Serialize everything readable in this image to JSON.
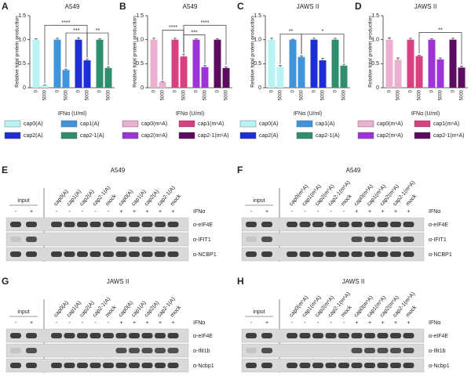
{
  "chart_data": [
    {
      "type": "bar",
      "letter": "A",
      "title": "A549",
      "y_label": "Relative total protein production",
      "x_label": "IFNα (U/ml)",
      "categories": [
        "0",
        "5000"
      ],
      "ylim": [
        0,
        1.5
      ],
      "yticks": [
        0,
        0.5,
        {
          "value": 1,
          "label": "1.0"
        },
        1.5
      ],
      "series": [
        {
          "name": "cap0(A)",
          "color": "#b9f3f3",
          "values": [
            1.0,
            0.05
          ],
          "errors": [
            0.02,
            0.01
          ]
        },
        {
          "name": "cap1(A)",
          "color": "#3f94dc",
          "values": [
            1.0,
            0.37
          ],
          "errors": [
            0.03,
            0.02
          ]
        },
        {
          "name": "cap2(A)",
          "color": "#1d2fd2",
          "values": [
            1.0,
            0.57
          ],
          "errors": [
            0.04,
            0.03
          ]
        },
        {
          "name": "cap2-1(A)",
          "color": "#2f8f6c",
          "values": [
            1.0,
            0.41
          ],
          "errors": [
            0.02,
            0.02
          ]
        }
      ],
      "annotations": [
        "****",
        "***",
        "**"
      ]
    },
    {
      "type": "bar",
      "letter": "B",
      "title": "A549",
      "y_label": "Relative total protein production",
      "x_label": "IFNα (U/ml)",
      "categories": [
        "0",
        "5000"
      ],
      "ylim": [
        0,
        1.5
      ],
      "yticks": [
        0,
        0.5,
        {
          "value": 1,
          "label": "1.0"
        },
        1.5
      ],
      "series": [
        {
          "name": "cap0(m⁶A)",
          "color": "#ebb0cf",
          "values": [
            1.0,
            0.12
          ],
          "errors": [
            0.03,
            0.01
          ]
        },
        {
          "name": "cap1(m⁶A)",
          "color": "#d8407f",
          "values": [
            1.0,
            0.65
          ],
          "errors": [
            0.03,
            0.05
          ]
        },
        {
          "name": "cap2(m⁶A)",
          "color": "#9d34d6",
          "values": [
            1.0,
            0.43
          ],
          "errors": [
            0.02,
            0.03
          ]
        },
        {
          "name": "cap2-1(m⁶A)",
          "color": "#5c0c5e",
          "values": [
            1.0,
            0.41
          ],
          "errors": [
            0.02,
            0.02
          ]
        }
      ],
      "annotations": [
        "****",
        "***",
        "****"
      ]
    },
    {
      "type": "bar",
      "letter": "C",
      "title": "JAWS II",
      "y_label": "Relative total protein production",
      "x_label": "IFNα (U/ml)",
      "categories": [
        "0",
        "5000"
      ],
      "ylim": [
        0,
        1.5
      ],
      "yticks": [
        0,
        0.5,
        {
          "value": 1,
          "label": "1.0"
        },
        1.5
      ],
      "series": [
        {
          "name": "cap0(A)",
          "color": "#b9f3f3",
          "values": [
            1.0,
            0.43
          ],
          "errors": [
            0.03,
            0.03
          ]
        },
        {
          "name": "cap1(A)",
          "color": "#3f94dc",
          "values": [
            1.0,
            0.64
          ],
          "errors": [
            0.01,
            0.02
          ]
        },
        {
          "name": "cap2(A)",
          "color": "#1d2fd2",
          "values": [
            1.0,
            0.57
          ],
          "errors": [
            0.03,
            0.04
          ]
        },
        {
          "name": "cap2-1(A)",
          "color": "#2f8f6c",
          "values": [
            1.0,
            0.46
          ],
          "errors": [
            0.03,
            0.03
          ]
        }
      ],
      "annotations": [
        "**",
        "*"
      ]
    },
    {
      "type": "bar",
      "letter": "D",
      "title": "JAWS II",
      "y_label": "Relative total protein production",
      "x_label": "IFNα (U/ml)",
      "categories": [
        "0",
        "5000"
      ],
      "ylim": [
        0,
        1.5
      ],
      "yticks": [
        0,
        0.5,
        {
          "value": 1,
          "label": "1.0"
        },
        1.5
      ],
      "series": [
        {
          "name": "cap0(m⁶A)",
          "color": "#ebb0cf",
          "values": [
            1.0,
            0.58
          ],
          "errors": [
            0.04,
            0.04
          ]
        },
        {
          "name": "cap1(m⁶A)",
          "color": "#d8407f",
          "values": [
            1.0,
            0.66
          ],
          "errors": [
            0.03,
            0.02
          ]
        },
        {
          "name": "cap2(m⁶A)",
          "color": "#9d34d6",
          "values": [
            1.0,
            0.59
          ],
          "errors": [
            0.02,
            0.03
          ]
        },
        {
          "name": "cap2-1(m⁶A)",
          "color": "#5c0c5e",
          "values": [
            1.0,
            0.42
          ],
          "errors": [
            0.03,
            0.03
          ]
        }
      ],
      "annotations": [
        "**"
      ]
    }
  ],
  "blots": [
    {
      "letter": "E",
      "title": "A549",
      "input": "input",
      "lanes": [
        "cap0(A)",
        "cap1(A)",
        "cap2(A)",
        "cap2-1(A)",
        "mock",
        "cap0(A)",
        "cap1(A)",
        "cap2(A)",
        "cap2-1(A)",
        "mock"
      ],
      "treatment": "IFNα",
      "input_signs": [
        "-",
        "+"
      ],
      "signs": [
        "-",
        "-",
        "-",
        "-",
        "-",
        "+",
        "+",
        "+",
        "+",
        "+"
      ],
      "antibodies": [
        "α-eIF4E",
        "α-IFIT1",
        "α-NCBP1"
      ]
    },
    {
      "letter": "F",
      "title": "A549",
      "input": "input",
      "lanes": [
        "cap0(m⁶A)",
        "cap1(m⁶A)",
        "cap2(m⁶A)",
        "cap2-1(m⁶A)",
        "mock",
        "cap0(m⁶A)",
        "cap1(m⁶A)",
        "cap2(m⁶A)",
        "cap2-1(m⁶A)",
        "mock"
      ],
      "treatment": "IFNα",
      "input_signs": [
        "-",
        "+"
      ],
      "signs": [
        "-",
        "-",
        "-",
        "-",
        "-",
        "+",
        "+",
        "+",
        "+",
        "+"
      ],
      "antibodies": [
        "α-eIF4E",
        "α-IFIT1",
        "α-NCBP1"
      ]
    },
    {
      "letter": "G",
      "title": "JAWS II",
      "input": "input",
      "lanes": [
        "cap0(A)",
        "cap1(A)",
        "cap2(A)",
        "cap2-1(A)",
        "mock",
        "cap0(A)",
        "cap1(A)",
        "cap2(A)",
        "cap2-1(A)",
        "mock"
      ],
      "treatment": "IFNα",
      "input_signs": [
        "-",
        "+"
      ],
      "signs": [
        "-",
        "-",
        "-",
        "-",
        "-",
        "+",
        "+",
        "+",
        "+",
        "+"
      ],
      "antibodies": [
        "α-eIF4E",
        "α-Ifit1b",
        "α-Ncbp1"
      ]
    },
    {
      "letter": "H",
      "title": "JAWS II",
      "input": "input",
      "lanes": [
        "cap0(m⁶A)",
        "cap1(m⁶A)",
        "cap2(m⁶A)",
        "cap2-1(m⁶A)",
        "mock",
        "cap0(m⁶A)",
        "cap1(m⁶A)",
        "cap2(m⁶A)",
        "cap2-1(m⁶A)",
        "mock"
      ],
      "treatment": "IFNα",
      "input_signs": [
        "-",
        "+"
      ],
      "signs": [
        "-",
        "-",
        "-",
        "-",
        "-",
        "+",
        "+",
        "+",
        "+",
        "+"
      ],
      "antibodies": [
        "α-eIF4E",
        "α-Ifit1b",
        "α-Ncbp1"
      ]
    }
  ]
}
